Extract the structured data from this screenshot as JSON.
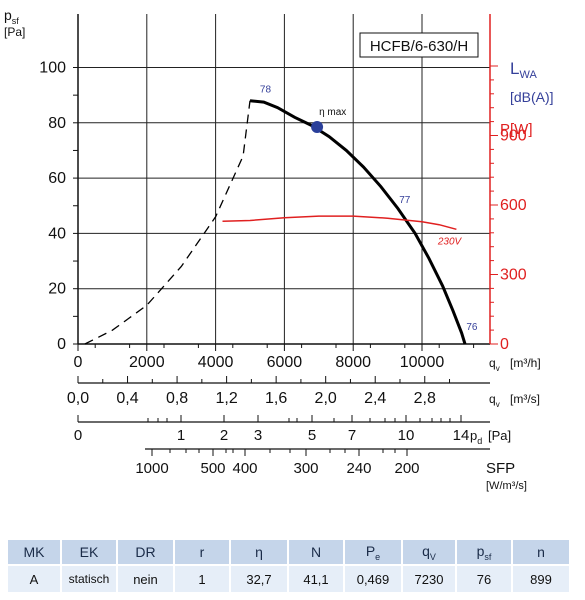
{
  "chart_data": {
    "type": "line",
    "model_label": "HCFB/6-630/H",
    "y_left": {
      "unit_top": "p",
      "unit_sub": "sf",
      "unit_bracket": "[Pa]",
      "ticks": [
        "0",
        "20",
        "40",
        "60",
        "80",
        "100"
      ],
      "ylim": [
        0,
        100
      ]
    },
    "y_right": {
      "lwa_label": "L",
      "lwa_sub": "WA",
      "lwa_unit": "[dB(A)]",
      "power_label": "P[W]",
      "ticks": [
        "0",
        "300",
        "600",
        "900"
      ],
      "ylim": [
        0,
        1200
      ]
    },
    "x_m3h": {
      "ticks": [
        "0",
        "2000",
        "4000",
        "6000",
        "8000",
        "10000"
      ],
      "label": "q",
      "label_sub": "v",
      "unit": "[m³/h]",
      "xlim": [
        0,
        12500
      ]
    },
    "x_m3s": {
      "ticks": [
        "0,0",
        "0,4",
        "0,8",
        "1,2",
        "1,6",
        "2,0",
        "2,4",
        "2,8"
      ],
      "label": "q",
      "label_sub": "v",
      "unit": "[m³/s]"
    },
    "x_pd": {
      "ticks": [
        "0",
        "1",
        "2",
        "3",
        "5",
        "7",
        "10",
        "14"
      ],
      "label": "p",
      "label_sub": "d",
      "unit": "[Pa]"
    },
    "x_sfp": {
      "ticks": [
        "1000",
        "500",
        "400",
        "300",
        "240",
        "200"
      ],
      "label": "SFP",
      "unit": "[W/m³/s]"
    },
    "series": [
      {
        "points": [
          [
            5000,
            88
          ],
          [
            5400,
            87.5
          ],
          [
            5800,
            85.5
          ],
          [
            6300,
            82
          ],
          [
            6800,
            79
          ],
          [
            7300,
            75
          ],
          [
            7800,
            70
          ],
          [
            8300,
            64
          ],
          [
            8800,
            57
          ],
          [
            9300,
            49
          ],
          [
            9800,
            40
          ],
          [
            10200,
            31
          ],
          [
            10600,
            21
          ],
          [
            10900,
            12
          ],
          [
            11150,
            4
          ],
          [
            11250,
            0
          ]
        ]
      },
      {
        "points": [
          [
            200,
            0
          ],
          [
            1000,
            5
          ],
          [
            2000,
            14
          ],
          [
            3000,
            28
          ],
          [
            4000,
            46
          ],
          [
            4800,
            68
          ],
          [
            5000,
            88
          ]
        ]
      },
      {
        "name": "230V",
        "points": [
          [
            4200,
            530
          ],
          [
            5000,
            533
          ],
          [
            6000,
            545
          ],
          [
            7000,
            552
          ],
          [
            8000,
            552
          ],
          [
            9000,
            543
          ],
          [
            10000,
            528
          ],
          [
            10500,
            515
          ],
          [
            11000,
            495
          ]
        ]
      }
    ],
    "annotations": [
      {
        "text": "η max",
        "x": 6950,
        "y": 78.5
      },
      {
        "text": "78",
        "x": 5450,
        "y": 91
      },
      {
        "text": "77",
        "x": 9500,
        "y": 51
      },
      {
        "text": "76",
        "x": 11450,
        "y": 5
      },
      {
        "text": "230V",
        "x": 10800,
        "y": 36
      }
    ]
  },
  "table": {
    "headers": [
      {
        "t": "MK",
        "s": ""
      },
      {
        "t": "EK",
        "s": ""
      },
      {
        "t": "DR",
        "s": ""
      },
      {
        "t": "r",
        "s": ""
      },
      {
        "t": "η",
        "s": ""
      },
      {
        "t": "N",
        "s": ""
      },
      {
        "t": "P",
        "s": "e"
      },
      {
        "t": "q",
        "s": "V"
      },
      {
        "t": "p",
        "s": "sf"
      },
      {
        "t": "n",
        "s": ""
      }
    ],
    "row": [
      "A",
      "statisch",
      "nein",
      "1",
      "32,7",
      "41,1",
      "0,469",
      "7230",
      "76",
      "899"
    ]
  },
  "colors": {
    "main_curve": "#000000",
    "power_curve": "#e02020",
    "right_axis": "#e02020",
    "lwa_label": "#35409a",
    "dot": "#2a3f9a",
    "header_bg": "#c5d5ea",
    "cell_bg": "#e6eef8"
  }
}
